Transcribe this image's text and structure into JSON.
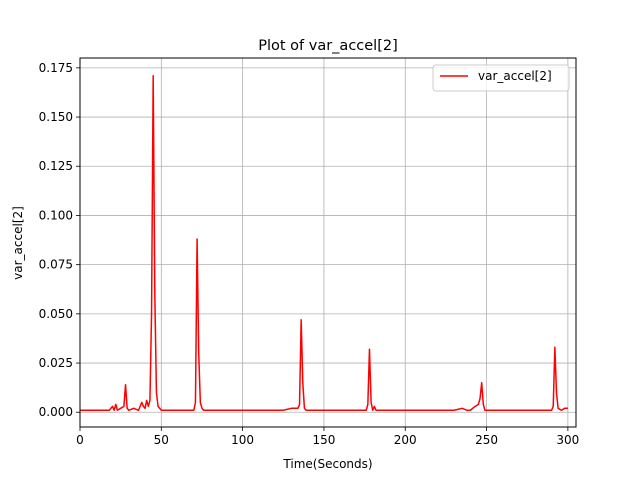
{
  "chart_data": {
    "type": "line",
    "title": "Plot of var_accel[2]",
    "xlabel": "Time(Seconds)",
    "ylabel": "var_accel[2]",
    "xlim": [
      0,
      305
    ],
    "ylim": [
      -0.0075,
      0.18
    ],
    "xticks": [
      0,
      50,
      100,
      150,
      200,
      250,
      300
    ],
    "xtick_labels": [
      "0",
      "50",
      "100",
      "150",
      "200",
      "250",
      "300"
    ],
    "yticks": [
      0.0,
      0.025,
      0.05,
      0.075,
      0.1,
      0.125,
      0.15,
      0.175
    ],
    "ytick_labels": [
      "0.000",
      "0.025",
      "0.050",
      "0.075",
      "0.100",
      "0.125",
      "0.150",
      "0.175"
    ],
    "grid": true,
    "legend_position": "top-right",
    "series": [
      {
        "name": "var_accel[2]",
        "color": "#ff0000",
        "x": [
          0,
          10,
          18,
          20,
          21,
          22,
          23,
          25,
          27,
          28,
          29,
          30,
          33,
          36,
          38,
          39,
          40,
          41,
          42,
          43,
          44,
          45,
          46,
          47,
          48,
          50,
          55,
          60,
          65,
          70,
          71,
          72,
          73,
          74,
          75,
          76,
          78,
          80,
          90,
          100,
          110,
          120,
          125,
          130,
          134,
          135,
          136,
          137,
          138,
          139,
          141,
          145,
          150,
          160,
          170,
          176,
          177,
          178,
          179,
          180,
          181,
          182,
          183,
          185,
          190,
          200,
          210,
          220,
          230,
          235,
          238,
          240,
          243,
          245,
          246,
          247,
          248,
          249,
          250,
          252,
          255,
          260,
          270,
          280,
          290,
          291,
          292,
          293,
          294,
          296,
          298,
          300
        ],
        "values": [
          0.001,
          0.001,
          0.001,
          0.003,
          0.001,
          0.004,
          0.001,
          0.002,
          0.003,
          0.014,
          0.002,
          0.001,
          0.002,
          0.001,
          0.005,
          0.003,
          0.002,
          0.006,
          0.003,
          0.006,
          0.05,
          0.171,
          0.06,
          0.01,
          0.003,
          0.001,
          0.001,
          0.001,
          0.001,
          0.001,
          0.005,
          0.088,
          0.03,
          0.005,
          0.002,
          0.001,
          0.001,
          0.001,
          0.001,
          0.001,
          0.001,
          0.001,
          0.001,
          0.002,
          0.002,
          0.004,
          0.047,
          0.015,
          0.002,
          0.001,
          0.001,
          0.001,
          0.001,
          0.001,
          0.001,
          0.001,
          0.004,
          0.032,
          0.005,
          0.001,
          0.003,
          0.001,
          0.001,
          0.001,
          0.001,
          0.001,
          0.001,
          0.001,
          0.001,
          0.002,
          0.001,
          0.001,
          0.003,
          0.004,
          0.007,
          0.015,
          0.004,
          0.001,
          0.001,
          0.001,
          0.001,
          0.001,
          0.001,
          0.001,
          0.001,
          0.003,
          0.033,
          0.01,
          0.002,
          0.001,
          0.002,
          0.002
        ]
      }
    ]
  }
}
